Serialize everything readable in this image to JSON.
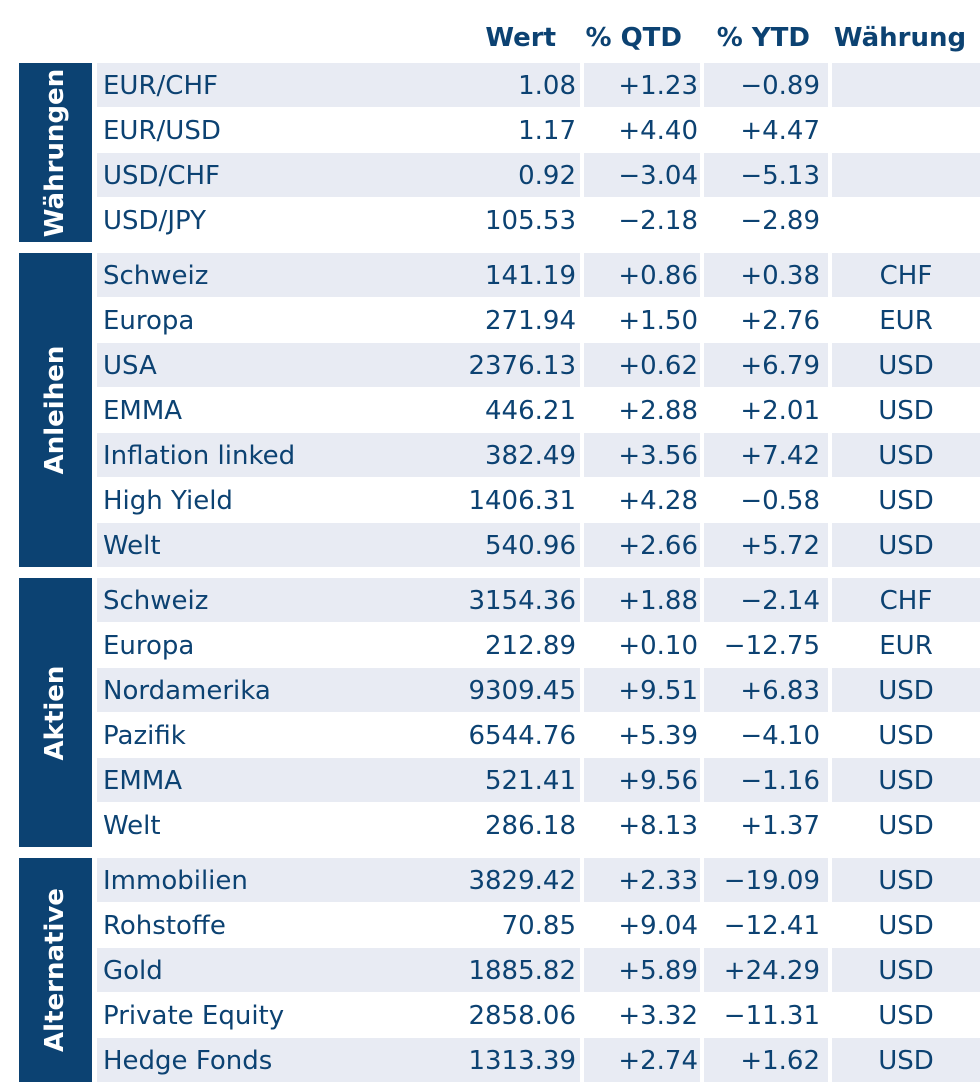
{
  "columns": {
    "wert": "Wert",
    "qtd": "% QTD",
    "ytd": "% YTD",
    "waehrung": "Währung"
  },
  "groups": [
    {
      "label": "Währungen",
      "rows": [
        {
          "name": "EUR/CHF",
          "wert": "1.08",
          "qtd": "+1.23",
          "ytd": "−0.89",
          "cur": ""
        },
        {
          "name": "EUR/USD",
          "wert": "1.17",
          "qtd": "+4.40",
          "ytd": "+4.47",
          "cur": ""
        },
        {
          "name": "USD/CHF",
          "wert": "0.92",
          "qtd": "−3.04",
          "ytd": "−5.13",
          "cur": ""
        },
        {
          "name": "USD/JPY",
          "wert": "105.53",
          "qtd": "−2.18",
          "ytd": "−2.89",
          "cur": ""
        }
      ]
    },
    {
      "label": "Anleihen",
      "rows": [
        {
          "name": "Schweiz",
          "wert": "141.19",
          "qtd": "+0.86",
          "ytd": "+0.38",
          "cur": "CHF"
        },
        {
          "name": "Europa",
          "wert": "271.94",
          "qtd": "+1.50",
          "ytd": "+2.76",
          "cur": "EUR"
        },
        {
          "name": "USA",
          "wert": "2376.13",
          "qtd": "+0.62",
          "ytd": "+6.79",
          "cur": "USD"
        },
        {
          "name": "EMMA",
          "wert": "446.21",
          "qtd": "+2.88",
          "ytd": "+2.01",
          "cur": "USD"
        },
        {
          "name": "Inflation linked",
          "wert": "382.49",
          "qtd": "+3.56",
          "ytd": "+7.42",
          "cur": "USD"
        },
        {
          "name": "High Yield",
          "wert": "1406.31",
          "qtd": "+4.28",
          "ytd": "−0.58",
          "cur": "USD"
        },
        {
          "name": "Welt",
          "wert": "540.96",
          "qtd": "+2.66",
          "ytd": "+5.72",
          "cur": "USD"
        }
      ]
    },
    {
      "label": "Aktien",
      "rows": [
        {
          "name": "Schweiz",
          "wert": "3154.36",
          "qtd": "+1.88",
          "ytd": "−2.14",
          "cur": "CHF"
        },
        {
          "name": "Europa",
          "wert": "212.89",
          "qtd": "+0.10",
          "ytd": "−12.75",
          "cur": "EUR"
        },
        {
          "name": "Nordamerika",
          "wert": "9309.45",
          "qtd": "+9.51",
          "ytd": "+6.83",
          "cur": "USD"
        },
        {
          "name": "Pazifik",
          "wert": "6544.76",
          "qtd": "+5.39",
          "ytd": "−4.10",
          "cur": "USD"
        },
        {
          "name": "EMMA",
          "wert": "521.41",
          "qtd": "+9.56",
          "ytd": "−1.16",
          "cur": "USD"
        },
        {
          "name": "Welt",
          "wert": "286.18",
          "qtd": "+8.13",
          "ytd": "+1.37",
          "cur": "USD"
        }
      ]
    },
    {
      "label": "Alternative",
      "rows": [
        {
          "name": "Immobilien",
          "wert": "3829.42",
          "qtd": "+2.33",
          "ytd": "−19.09",
          "cur": "USD"
        },
        {
          "name": "Rohstoffe",
          "wert": "70.85",
          "qtd": "+9.04",
          "ytd": "−12.41",
          "cur": "USD"
        },
        {
          "name": "Gold",
          "wert": "1885.82",
          "qtd": "+5.89",
          "ytd": "+24.29",
          "cur": "USD"
        },
        {
          "name": "Private Equity",
          "wert": "2858.06",
          "qtd": "+3.32",
          "ytd": "−11.31",
          "cur": "USD"
        },
        {
          "name": "Hedge Fonds",
          "wert": "1313.39",
          "qtd": "+2.74",
          "ytd": "+1.62",
          "cur": "USD"
        }
      ]
    }
  ]
}
